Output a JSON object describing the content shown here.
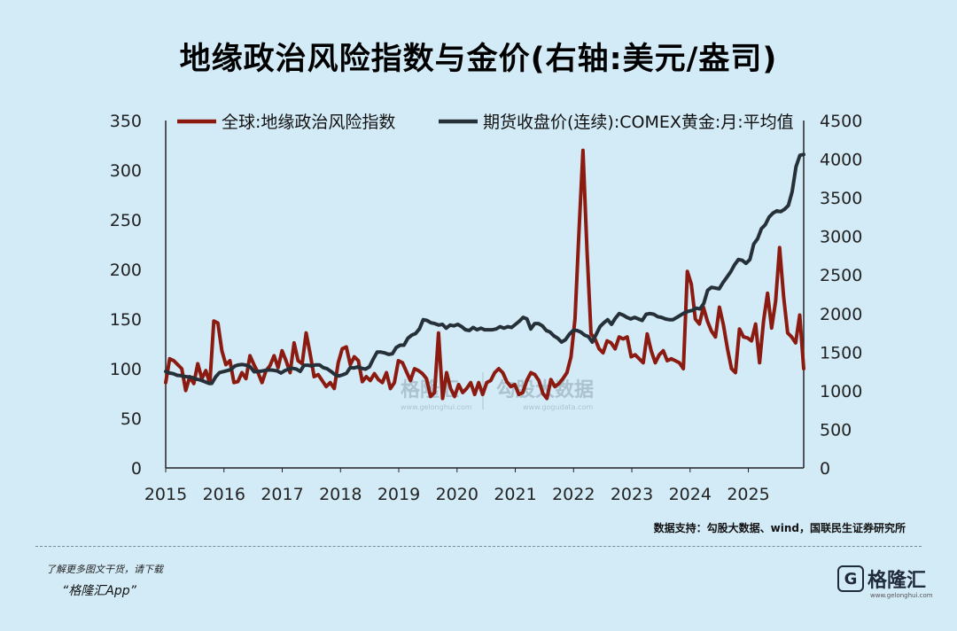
{
  "title": "地缘政治风险指数与金价(右轴:美元/盎司)",
  "source": "数据支持：勾股大数据、wind，国联民生证券研究所",
  "footer": {
    "note": "了解更多图文干货，请下载",
    "app": "“格隆汇App”",
    "logo_text": "格隆汇",
    "logo_sub": "www.gelonghui.com"
  },
  "watermark": {
    "left_text": "格隆汇",
    "right_text": "勾股大数据",
    "sub_left": "www.gelonghui.com",
    "sub_right": "www.gogudata.com"
  },
  "chart_data": {
    "type": "line",
    "x_ticks": [
      "2015",
      "2016",
      "2017",
      "2018",
      "2019",
      "2020",
      "2021",
      "2022",
      "2023",
      "2024",
      "2025"
    ],
    "x_range": [
      2015.0,
      2025.95
    ],
    "y_left": {
      "range": [
        0,
        350
      ],
      "ticks": [
        0,
        50,
        100,
        150,
        200,
        250,
        300,
        350
      ]
    },
    "y_right": {
      "range": [
        0,
        4500
      ],
      "ticks": [
        0,
        500,
        1000,
        1500,
        2000,
        2500,
        3000,
        3500,
        4000,
        4500
      ]
    },
    "legend_position": "top",
    "grid": false,
    "series": [
      {
        "name": "全球:地缘政治风险指数",
        "axis": "left",
        "color": "#8b1a10",
        "values": [
          86,
          110,
          108,
          104,
          100,
          78,
          92,
          85,
          105,
          90,
          98,
          85,
          148,
          146,
          118,
          104,
          108,
          86,
          87,
          96,
          90,
          113,
          104,
          96,
          86,
          98,
          103,
          113,
          101,
          118,
          108,
          96,
          126,
          108,
          105,
          136,
          115,
          92,
          94,
          88,
          82,
          86,
          80,
          106,
          120,
          122,
          104,
          112,
          108,
          87,
          92,
          88,
          95,
          89,
          86,
          96,
          80,
          86,
          108,
          106,
          97,
          88,
          100,
          98,
          95,
          90,
          72,
          76,
          136,
          70,
          96,
          80,
          72,
          84,
          76,
          80,
          86,
          74,
          86,
          74,
          86,
          88,
          96,
          100,
          96,
          87,
          82,
          84,
          74,
          76,
          88,
          96,
          94,
          88,
          75,
          70,
          89,
          82,
          85,
          90,
          96,
          112,
          150,
          238,
          320,
          218,
          135,
          130,
          120,
          116,
          128,
          126,
          120,
          132,
          130,
          132,
          112,
          114,
          110,
          106,
          135,
          118,
          106,
          114,
          118,
          108,
          110,
          108,
          106,
          100,
          198,
          185,
          150,
          145,
          162,
          148,
          138,
          132,
          162,
          144,
          120,
          100,
          96,
          140,
          132,
          131,
          128,
          145,
          106,
          148,
          176,
          141,
          168,
          222,
          172,
          136,
          132,
          126,
          154,
          100
        ],
        "note": "read off the left axis; values are approximate estimates from the figure"
      },
      {
        "name": "期货收盘价(连续):COMEX黄金:月:平均值",
        "axis": "right",
        "color": "#263039",
        "values": [
          1250,
          1230,
          1220,
          1200,
          1195,
          1185,
          1178,
          1170,
          1150,
          1140,
          1120,
          1100,
          1095,
          1180,
          1235,
          1248,
          1260,
          1275,
          1320,
          1335,
          1340,
          1330,
          1310,
          1245,
          1250,
          1255,
          1265,
          1270,
          1265,
          1257,
          1230,
          1260,
          1280,
          1290,
          1280,
          1250,
          1330,
          1330,
          1320,
          1335,
          1335,
          1300,
          1285,
          1250,
          1210,
          1190,
          1205,
          1225,
          1300,
          1295,
          1310,
          1290,
          1280,
          1310,
          1410,
          1500,
          1500,
          1490,
          1470,
          1480,
          1560,
          1590,
          1590,
          1680,
          1720,
          1740,
          1800,
          1920,
          1910,
          1880,
          1870,
          1850,
          1860,
          1810,
          1850,
          1840,
          1860,
          1830,
          1790,
          1780,
          1820,
          1790,
          1810,
          1790,
          1790,
          1790,
          1800,
          1830,
          1810,
          1830,
          1820,
          1860,
          1900,
          1950,
          1930,
          1800,
          1870,
          1870,
          1840,
          1780,
          1760,
          1710,
          1680,
          1630,
          1660,
          1730,
          1780,
          1780,
          1760,
          1720,
          1700,
          1630,
          1730,
          1830,
          1880,
          1920,
          1860,
          1940,
          2000,
          1980,
          1950,
          1930,
          1950,
          1930,
          1910,
          1990,
          2000,
          1990,
          1960,
          1950,
          1930,
          1920,
          1920,
          1950,
          1980,
          2010,
          2030,
          2040,
          2070,
          2060,
          2130,
          2300,
          2340,
          2330,
          2320,
          2400,
          2470,
          2540,
          2630,
          2700,
          2690,
          2650,
          2700,
          2900,
          2970,
          3100,
          3150,
          3250,
          3300,
          3330,
          3320,
          3350,
          3400,
          3580,
          3900,
          4050,
          4060
        ],
        "note": "read off the right axis; values are approximate estimates from the figure"
      }
    ]
  }
}
